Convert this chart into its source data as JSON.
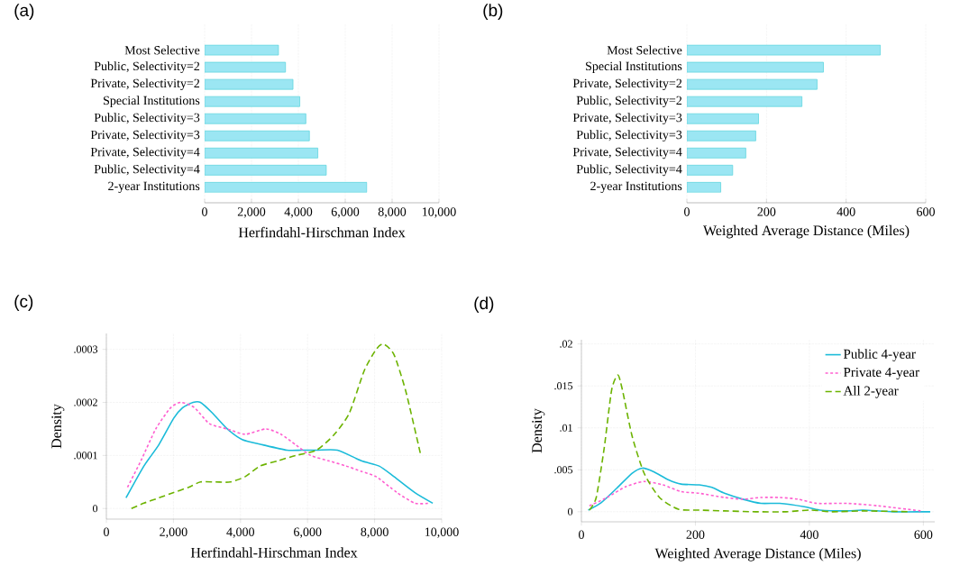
{
  "chart_data": [
    {
      "type": "bar",
      "title": "(a)",
      "orientation": "horizontal",
      "xlabel": "Herfindahl-Hirschman Index",
      "categories": [
        "Most Selective",
        "Public, Selectivity=2",
        "Private, Selectivity=2",
        "Special Institutions",
        "Public, Selectivity=3",
        "Private, Selectivity=3",
        "Private, Selectivity=4",
        "Public, Selectivity=4",
        "2-year Institutions"
      ],
      "values": [
        3150,
        3450,
        3770,
        4060,
        4320,
        4470,
        4830,
        5190,
        6920
      ],
      "color": "#9be6f3",
      "xlim": [
        0,
        10000
      ],
      "xticks": [
        0,
        {
          "value": 2000,
          "label": "2,000"
        },
        {
          "value": 4000,
          "label": "4,000"
        },
        {
          "value": 6000,
          "label": "6,000"
        },
        {
          "value": 8000,
          "label": "8,000"
        },
        {
          "value": 10000,
          "label": "10,000"
        }
      ],
      "grid": "x"
    },
    {
      "type": "bar",
      "title": "(b)",
      "orientation": "horizontal",
      "xlabel": "Weighted Average Distance (Miles)",
      "categories": [
        "Most Selective",
        "Special Institutions",
        "Private, Selectivity=2",
        "Public, Selectivity=2",
        "Private, Selectivity=3",
        "Public, Selectivity=3",
        "Private, Selectivity=4",
        "Public, Selectivity=4",
        "2-year Institutions"
      ],
      "values": [
        486,
        343,
        327,
        289,
        180,
        173,
        148,
        115,
        85
      ],
      "color": "#9be6f3",
      "xlim": [
        0,
        600
      ],
      "xticks": [
        0,
        200,
        400,
        600
      ],
      "grid": "x"
    },
    {
      "type": "line",
      "title": "(c)",
      "xlabel": "Herfindahl-Hirschman Index",
      "ylabel": "Density",
      "xlim": [
        0,
        10000
      ],
      "ylim": [
        -2e-05,
        0.00033
      ],
      "xticks": [
        0,
        {
          "value": 2000,
          "label": "2,000"
        },
        {
          "value": 4000,
          "label": "4,000"
        },
        {
          "value": 6000,
          "label": "6,000"
        },
        {
          "value": 8000,
          "label": "8,000"
        },
        {
          "value": 10000,
          "label": "10,000"
        }
      ],
      "yticks": [
        0,
        {
          "value": 0.0001,
          "label": ".0001"
        },
        {
          "value": 0.0002,
          "label": ".0002"
        },
        {
          "value": 0.0003,
          "label": ".0003"
        }
      ],
      "grid": true,
      "series": [
        {
          "color": "#1bbbd9",
          "line_style": "solid",
          "x": [
            586,
            1119,
            1563,
            2007,
            2274,
            2584,
            2806,
            3162,
            3606,
            4050,
            4671,
            5382,
            5826,
            6270,
            6892,
            7602,
            8135,
            8579,
            9201,
            9734
          ],
          "values": [
            2e-05,
            8e-05,
            0.00012,
            0.00017,
            0.00019,
            0.0002,
            0.0002,
            0.00018,
            0.00015,
            0.00013,
            0.00012,
            0.00011,
            0.00011,
            0.00011,
            0.00011,
            9e-05,
            8e-05,
            6e-05,
            3e-05,
            1e-05
          ]
        },
        {
          "color": "#ff5fd0",
          "line_style": "dotted",
          "x": [
            631,
            1030,
            1474,
            1918,
            2229,
            2629,
            3073,
            3606,
            4139,
            4760,
            5204,
            5648,
            6092,
            6625,
            7158,
            7602,
            8046,
            8668,
            9201,
            9645
          ],
          "values": [
            4e-05,
            9e-05,
            0.00015,
            0.00019,
            0.0002,
            0.00019,
            0.00016,
            0.00015,
            0.00014,
            0.00015,
            0.00014,
            0.00012,
            0.0001,
            9e-05,
            8e-05,
            7e-05,
            6e-05,
            3e-05,
            1e-05,
            1e-05
          ]
        },
        {
          "color": "#6cb300",
          "line_style": "dashed",
          "x": [
            746,
            1119,
            1563,
            2007,
            2451,
            2806,
            3250,
            3694,
            4139,
            4583,
            5115,
            5648,
            6270,
            6803,
            7247,
            7691,
            8046,
            8268,
            8579,
            8934,
            9378
          ],
          "values": [
            0,
            1e-05,
            2e-05,
            3e-05,
            4e-05,
            5e-05,
            5e-05,
            5e-05,
            6e-05,
            8e-05,
            9e-05,
            0.0001,
            0.00011,
            0.00014,
            0.00018,
            0.00026,
            0.0003,
            0.00031,
            0.00029,
            0.00022,
            0.0001
          ]
        }
      ]
    },
    {
      "type": "line",
      "title": "(d)",
      "xlabel": "Weighted Average Distance (Miles)",
      "ylabel": "Density",
      "xlim": [
        0,
        620
      ],
      "ylim": [
        -0.0012,
        0.0205
      ],
      "xticks": [
        0,
        200,
        400,
        600
      ],
      "yticks": [
        0,
        {
          "value": 0.005,
          "label": ".005"
        },
        {
          "value": 0.01,
          "label": ".01"
        },
        {
          "value": 0.015,
          "label": ".015"
        },
        {
          "value": 0.02,
          "label": ".02"
        }
      ],
      "grid": true,
      "legend": "top right",
      "series": [
        {
          "name": "Public 4-year",
          "color": "#1bbbd9",
          "line_style": "solid",
          "x": [
            12,
            35,
            62,
            89,
            107,
            126,
            153,
            175,
            207,
            229,
            251,
            283,
            315,
            348,
            391,
            418,
            467,
            494,
            548,
            612
          ],
          "values": [
            0.0002,
            0.0011,
            0.0028,
            0.0046,
            0.0052,
            0.0048,
            0.0038,
            0.0033,
            0.0032,
            0.0029,
            0.0022,
            0.0015,
            0.001,
            0.001,
            0.0006,
            0.0002,
            0.0001,
            0.0002,
            0,
            0
          ]
        },
        {
          "name": "Private 4-year",
          "color": "#ff5fd0",
          "line_style": "dotted",
          "x": [
            14,
            45,
            78,
            110,
            143,
            175,
            207,
            251,
            283,
            315,
            348,
            380,
            413,
            467,
            521,
            596
          ],
          "values": [
            0.0007,
            0.0017,
            0.003,
            0.0036,
            0.0032,
            0.0024,
            0.0022,
            0.0017,
            0.0015,
            0.0017,
            0.0017,
            0.0015,
            0.001,
            0.001,
            0.0007,
            0.0001
          ]
        },
        {
          "name": "All 2-year",
          "color": "#6cb300",
          "line_style": "dashed",
          "x": [
            14,
            26,
            40,
            53,
            64,
            72,
            89,
            110,
            137,
            170,
            207,
            251,
            305,
            359,
            401,
            440,
            494,
            575
          ],
          "values": [
            0.0002,
            0.0017,
            0.0076,
            0.0145,
            0.0163,
            0.0145,
            0.009,
            0.0046,
            0.0017,
            0.0003,
            0.0002,
            0.0001,
            0,
            0,
            0.0002,
            0,
            0.0001,
            0
          ]
        }
      ]
    }
  ]
}
